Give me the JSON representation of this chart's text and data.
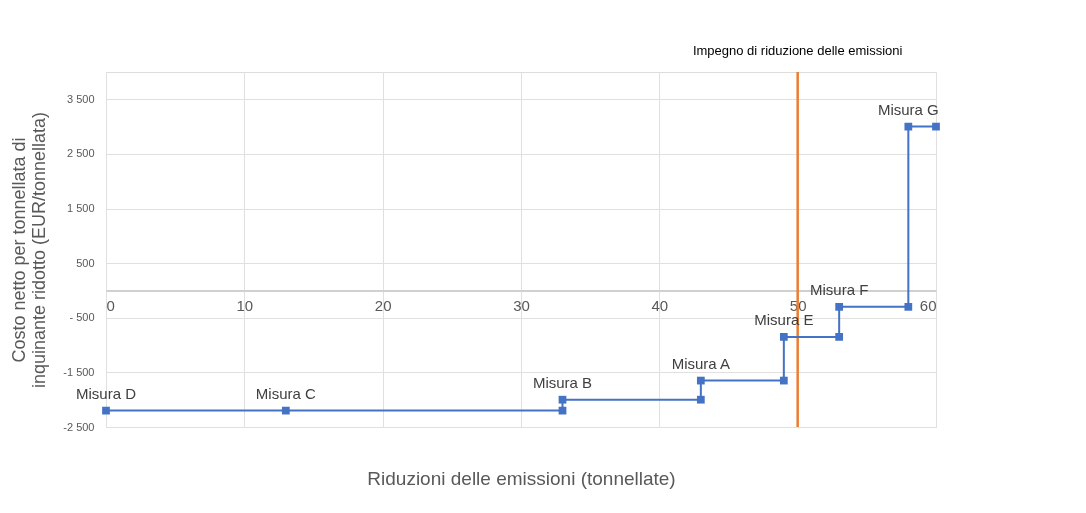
{
  "chart_data": {
    "type": "line",
    "xlabel": "Riduzioni delle emissioni (tonnellate)",
    "ylabel": "Costo netto per tonnellata di inquinante ridotto (EUR/tonnellata)",
    "x": [
      0,
      13,
      33,
      33,
      43,
      43,
      49,
      49,
      53,
      53,
      58,
      58,
      60
    ],
    "series": [
      {
        "color": "#4472c4",
        "values": [
          -2200,
          -2200,
          -2200,
          -2000,
          -2000,
          -1650,
          -1650,
          -850,
          -850,
          -300,
          -300,
          3000,
          3000
        ]
      }
    ],
    "marker": "square",
    "line_style": "solid",
    "grid": true,
    "xlim": [
      0,
      60
    ],
    "xticks": [
      0,
      10,
      20,
      30,
      40,
      50,
      60
    ],
    "ylim": [
      -2500,
      4000
    ],
    "yticks": [
      {
        "value": 3500,
        "label": "3 500"
      },
      {
        "value": 2500,
        "label": "2 500"
      },
      {
        "value": 1500,
        "label": "1 500"
      },
      500,
      {
        "value": -500,
        "label": "- 500"
      },
      {
        "value": -1500,
        "label": "-1 500"
      },
      {
        "value": -2500,
        "label": "-2 500"
      }
    ],
    "ref_lines": [
      {
        "axis": "x",
        "value": 50,
        "label": "Impegno di riduzione delle emissioni",
        "color": "#ed7d31",
        "line_style": "solid"
      }
    ],
    "annotations": [
      {
        "text": "Misura D",
        "x": 0,
        "y": -2200
      },
      {
        "text": "Misura C",
        "x": 13,
        "y": -2200
      },
      {
        "text": "Misura B",
        "x": 33,
        "y": -2000
      },
      {
        "text": "Misura A",
        "x": 43,
        "y": -1650
      },
      {
        "text": "Misura E",
        "x": 49,
        "y": -850
      },
      {
        "text": "Misura F",
        "x": 53,
        "y": -300
      },
      {
        "text": "Misura G",
        "x": 58,
        "y": 3000
      }
    ]
  }
}
